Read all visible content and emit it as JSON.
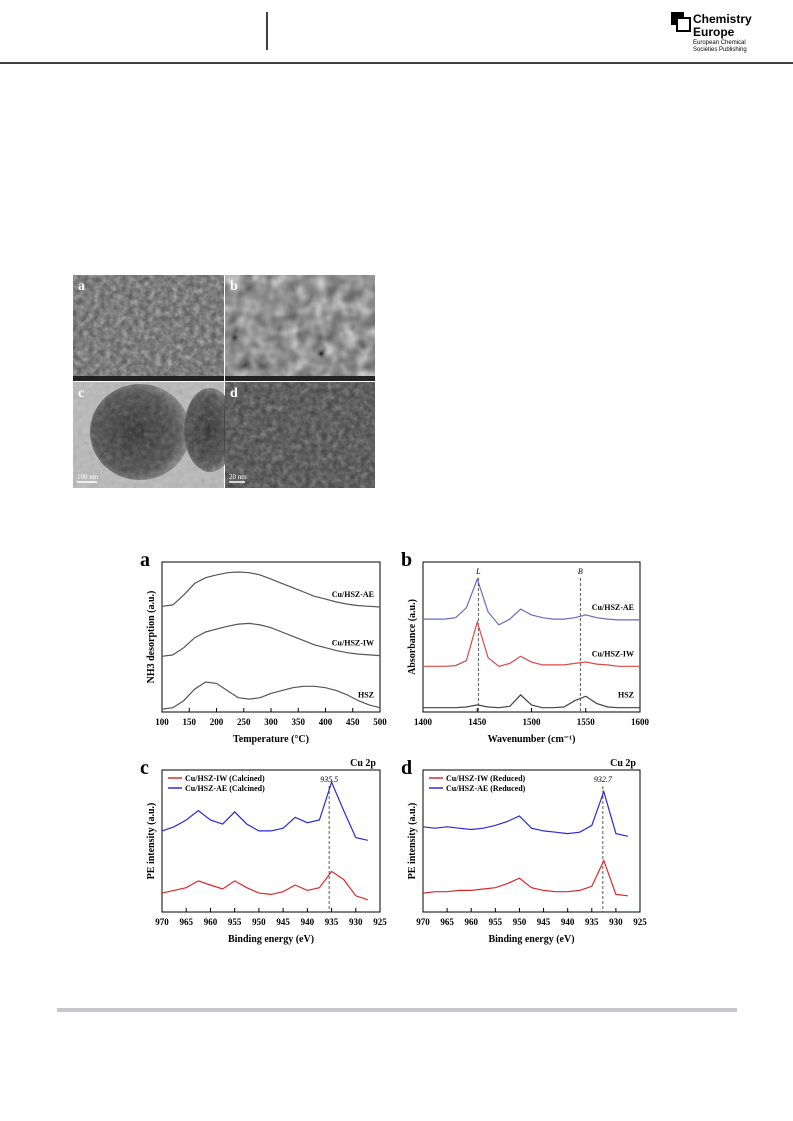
{
  "header": {
    "logo_line1": "Chemistry",
    "logo_line2": "Europe",
    "publisher_line1": "European Chemical",
    "publisher_line2": "Societies Publishing"
  },
  "micrographs": {
    "panels": [
      {
        "label": "a"
      },
      {
        "label": "b"
      },
      {
        "label": "c",
        "scale_bar": "100 nm"
      },
      {
        "label": "d",
        "scale_bar": "20 nm"
      }
    ]
  },
  "chart_data": [
    {
      "type": "line",
      "panel": "a",
      "xlabel": "Temperature (°C)",
      "ylabel": "NH3 desorption (a.u.)",
      "legend": "inline",
      "x": [
        100,
        120,
        140,
        160,
        180,
        200,
        220,
        240,
        260,
        280,
        300,
        320,
        340,
        360,
        380,
        400,
        420,
        440,
        460,
        480,
        500
      ],
      "xlim": [
        100,
        500
      ],
      "xticks": [
        100,
        150,
        200,
        250,
        300,
        350,
        400,
        450,
        500
      ],
      "ylim": [
        0,
        10.5
      ],
      "series": [
        {
          "name": "Cu/HSZ-AE",
          "color": "#555555",
          "values": [
            7.4,
            7.5,
            8.2,
            9.0,
            9.4,
            9.6,
            9.75,
            9.8,
            9.75,
            9.6,
            9.3,
            9.0,
            8.7,
            8.4,
            8.1,
            7.9,
            7.7,
            7.55,
            7.45,
            7.4,
            7.35
          ]
        },
        {
          "name": "Cu/HSZ-IW",
          "color": "#555555",
          "values": [
            3.9,
            4.0,
            4.5,
            5.2,
            5.6,
            5.8,
            6.0,
            6.15,
            6.2,
            6.1,
            5.9,
            5.6,
            5.3,
            5.0,
            4.7,
            4.5,
            4.3,
            4.15,
            4.05,
            4.0,
            3.95
          ]
        },
        {
          "name": "HSZ",
          "color": "#555555",
          "values": [
            0.2,
            0.3,
            0.8,
            1.6,
            2.1,
            2.0,
            1.5,
            1.0,
            0.9,
            1.0,
            1.3,
            1.5,
            1.7,
            1.8,
            1.8,
            1.7,
            1.5,
            1.2,
            0.8,
            0.5,
            0.3
          ]
        }
      ]
    },
    {
      "type": "line",
      "panel": "b",
      "xlabel": "Wavenumber (cm⁻¹)",
      "ylabel": "Absorbance (a.u.)",
      "legend": "inline",
      "x": [
        1400,
        1410,
        1420,
        1430,
        1440,
        1450,
        1460,
        1470,
        1480,
        1490,
        1500,
        1510,
        1520,
        1530,
        1540,
        1550,
        1560,
        1570,
        1580,
        1590,
        1600
      ],
      "xlim": [
        1400,
        1600
      ],
      "xticks": [
        1400,
        1450,
        1500,
        1550,
        1600
      ],
      "ylim": [
        0,
        10.5
      ],
      "annotations": [
        {
          "text": "L",
          "x": 1451
        },
        {
          "text": "B",
          "x": 1545
        }
      ],
      "series": [
        {
          "name": "Cu/HSZ-AE",
          "color": "#6a6ac8",
          "values": [
            6.5,
            6.5,
            6.5,
            6.6,
            7.3,
            9.3,
            7.0,
            6.1,
            6.5,
            7.2,
            6.8,
            6.6,
            6.5,
            6.5,
            6.6,
            6.8,
            6.6,
            6.5,
            6.45,
            6.45,
            6.45
          ]
        },
        {
          "name": "Cu/HSZ-IW",
          "color": "#d94a4a",
          "values": [
            3.2,
            3.2,
            3.2,
            3.25,
            3.6,
            6.3,
            3.8,
            3.2,
            3.4,
            3.9,
            3.5,
            3.3,
            3.3,
            3.3,
            3.4,
            3.5,
            3.35,
            3.3,
            3.2,
            3.2,
            3.2
          ]
        },
        {
          "name": "HSZ",
          "color": "#444444",
          "values": [
            0.3,
            0.3,
            0.3,
            0.3,
            0.35,
            0.5,
            0.35,
            0.3,
            0.4,
            1.2,
            0.5,
            0.3,
            0.3,
            0.35,
            0.8,
            1.1,
            0.6,
            0.35,
            0.3,
            0.3,
            0.3
          ]
        }
      ]
    },
    {
      "type": "line",
      "panel": "c",
      "xlabel": "Binding energy (eV)",
      "ylabel": "PE intensity (a.u.)",
      "legend": "upper left",
      "corner_label": "Cu 2p",
      "x": [
        970,
        967.5,
        965,
        962.5,
        960,
        957.5,
        955,
        952.5,
        950,
        947.5,
        945,
        942.5,
        940,
        937.5,
        935,
        932.5,
        930,
        927.5
      ],
      "xlim": [
        970,
        925
      ],
      "xticks": [
        970,
        965,
        960,
        955,
        950,
        945,
        940,
        935,
        930,
        925
      ],
      "ylim": [
        0,
        10.5
      ],
      "annotations": [
        {
          "text": "935.5",
          "x": 935.5
        }
      ],
      "series": [
        {
          "name": "Cu/HSZ-IW (Calcined)",
          "color": "#d92a2a",
          "values": [
            1.4,
            1.6,
            1.8,
            2.3,
            2.0,
            1.7,
            2.3,
            1.8,
            1.4,
            1.3,
            1.5,
            2.0,
            1.6,
            1.8,
            3.0,
            2.4,
            1.2,
            0.9
          ]
        },
        {
          "name": "Cu/HSZ-AE (Calcined)",
          "color": "#2a2ad9",
          "values": [
            6.0,
            6.3,
            6.8,
            7.5,
            6.8,
            6.5,
            7.4,
            6.5,
            6.0,
            6.0,
            6.2,
            7.0,
            6.6,
            6.8,
            9.6,
            7.5,
            5.5,
            5.3
          ]
        }
      ]
    },
    {
      "type": "line",
      "panel": "d",
      "xlabel": "Binding energy (eV)",
      "ylabel": "PE intensity (a.u.)",
      "legend": "upper left",
      "corner_label": "Cu 2p",
      "x": [
        970,
        967.5,
        965,
        962.5,
        960,
        957.5,
        955,
        952.5,
        950,
        947.5,
        945,
        942.5,
        940,
        937.5,
        935,
        932.5,
        930,
        927.5
      ],
      "xlim": [
        970,
        925
      ],
      "xticks": [
        970,
        965,
        960,
        955,
        950,
        945,
        940,
        935,
        930,
        925
      ],
      "ylim": [
        0,
        10.5
      ],
      "annotations": [
        {
          "text": "932.7",
          "x": 932.7
        }
      ],
      "series": [
        {
          "name": "Cu/HSZ-IW (Reduced)",
          "color": "#d92a2a",
          "values": [
            1.4,
            1.5,
            1.5,
            1.6,
            1.6,
            1.7,
            1.8,
            2.1,
            2.5,
            1.8,
            1.6,
            1.5,
            1.5,
            1.6,
            1.9,
            3.8,
            1.3,
            1.2
          ]
        },
        {
          "name": "Cu/HSZ-AE (Reduced)",
          "color": "#2a2ad9",
          "values": [
            6.3,
            6.2,
            6.3,
            6.2,
            6.1,
            6.2,
            6.4,
            6.7,
            7.1,
            6.2,
            6.0,
            5.9,
            5.8,
            5.9,
            6.4,
            8.9,
            5.8,
            5.6
          ]
        }
      ]
    }
  ]
}
